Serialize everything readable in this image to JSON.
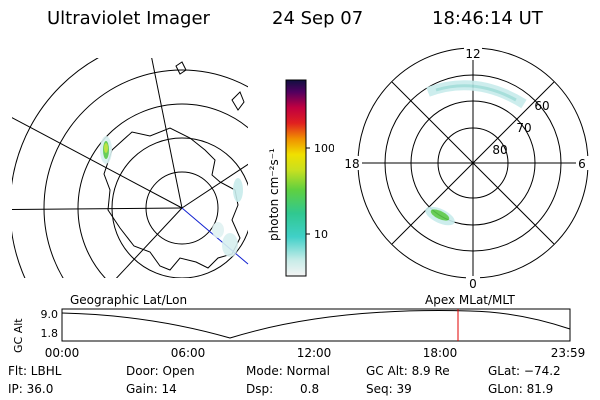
{
  "header": {
    "instrument": "Ultraviolet Imager",
    "date": "24 Sep 07",
    "time": "18:46:14 UT"
  },
  "colorbar": {
    "unit_label": "photon cm⁻²s⁻¹",
    "ticks": [
      "100",
      "10"
    ]
  },
  "polar_plot": {
    "mlt_labels": {
      "top": "12",
      "right": "6",
      "bottom": "0",
      "left": "18"
    },
    "mlat_labels": [
      "60",
      "70",
      "80"
    ]
  },
  "panel_labels": {
    "left": "Geographic Lat/Lon",
    "right": "Apex MLat/MLT"
  },
  "altitude_plot": {
    "axis_title": "GC Alt",
    "y_ticks": [
      "9.0",
      "1.8"
    ],
    "x_ticks": [
      "00:00",
      "06:00",
      "12:00",
      "18:00",
      "23:59"
    ]
  },
  "status": {
    "filter": "Flt: LBHL",
    "door": "Door: Open",
    "mode": "Mode: Normal",
    "gc_alt": "GC Alt: 8.9 Re",
    "glat": "GLat: −74.2",
    "ip": "IP: 36.0",
    "gain": "Gain: 14",
    "dsp_label": "Dsp:",
    "dsp_value": "0.8",
    "seq": "Seq: 39",
    "glon": "GLon: 81.9"
  },
  "colors": {
    "marker_line": "#e00000"
  }
}
